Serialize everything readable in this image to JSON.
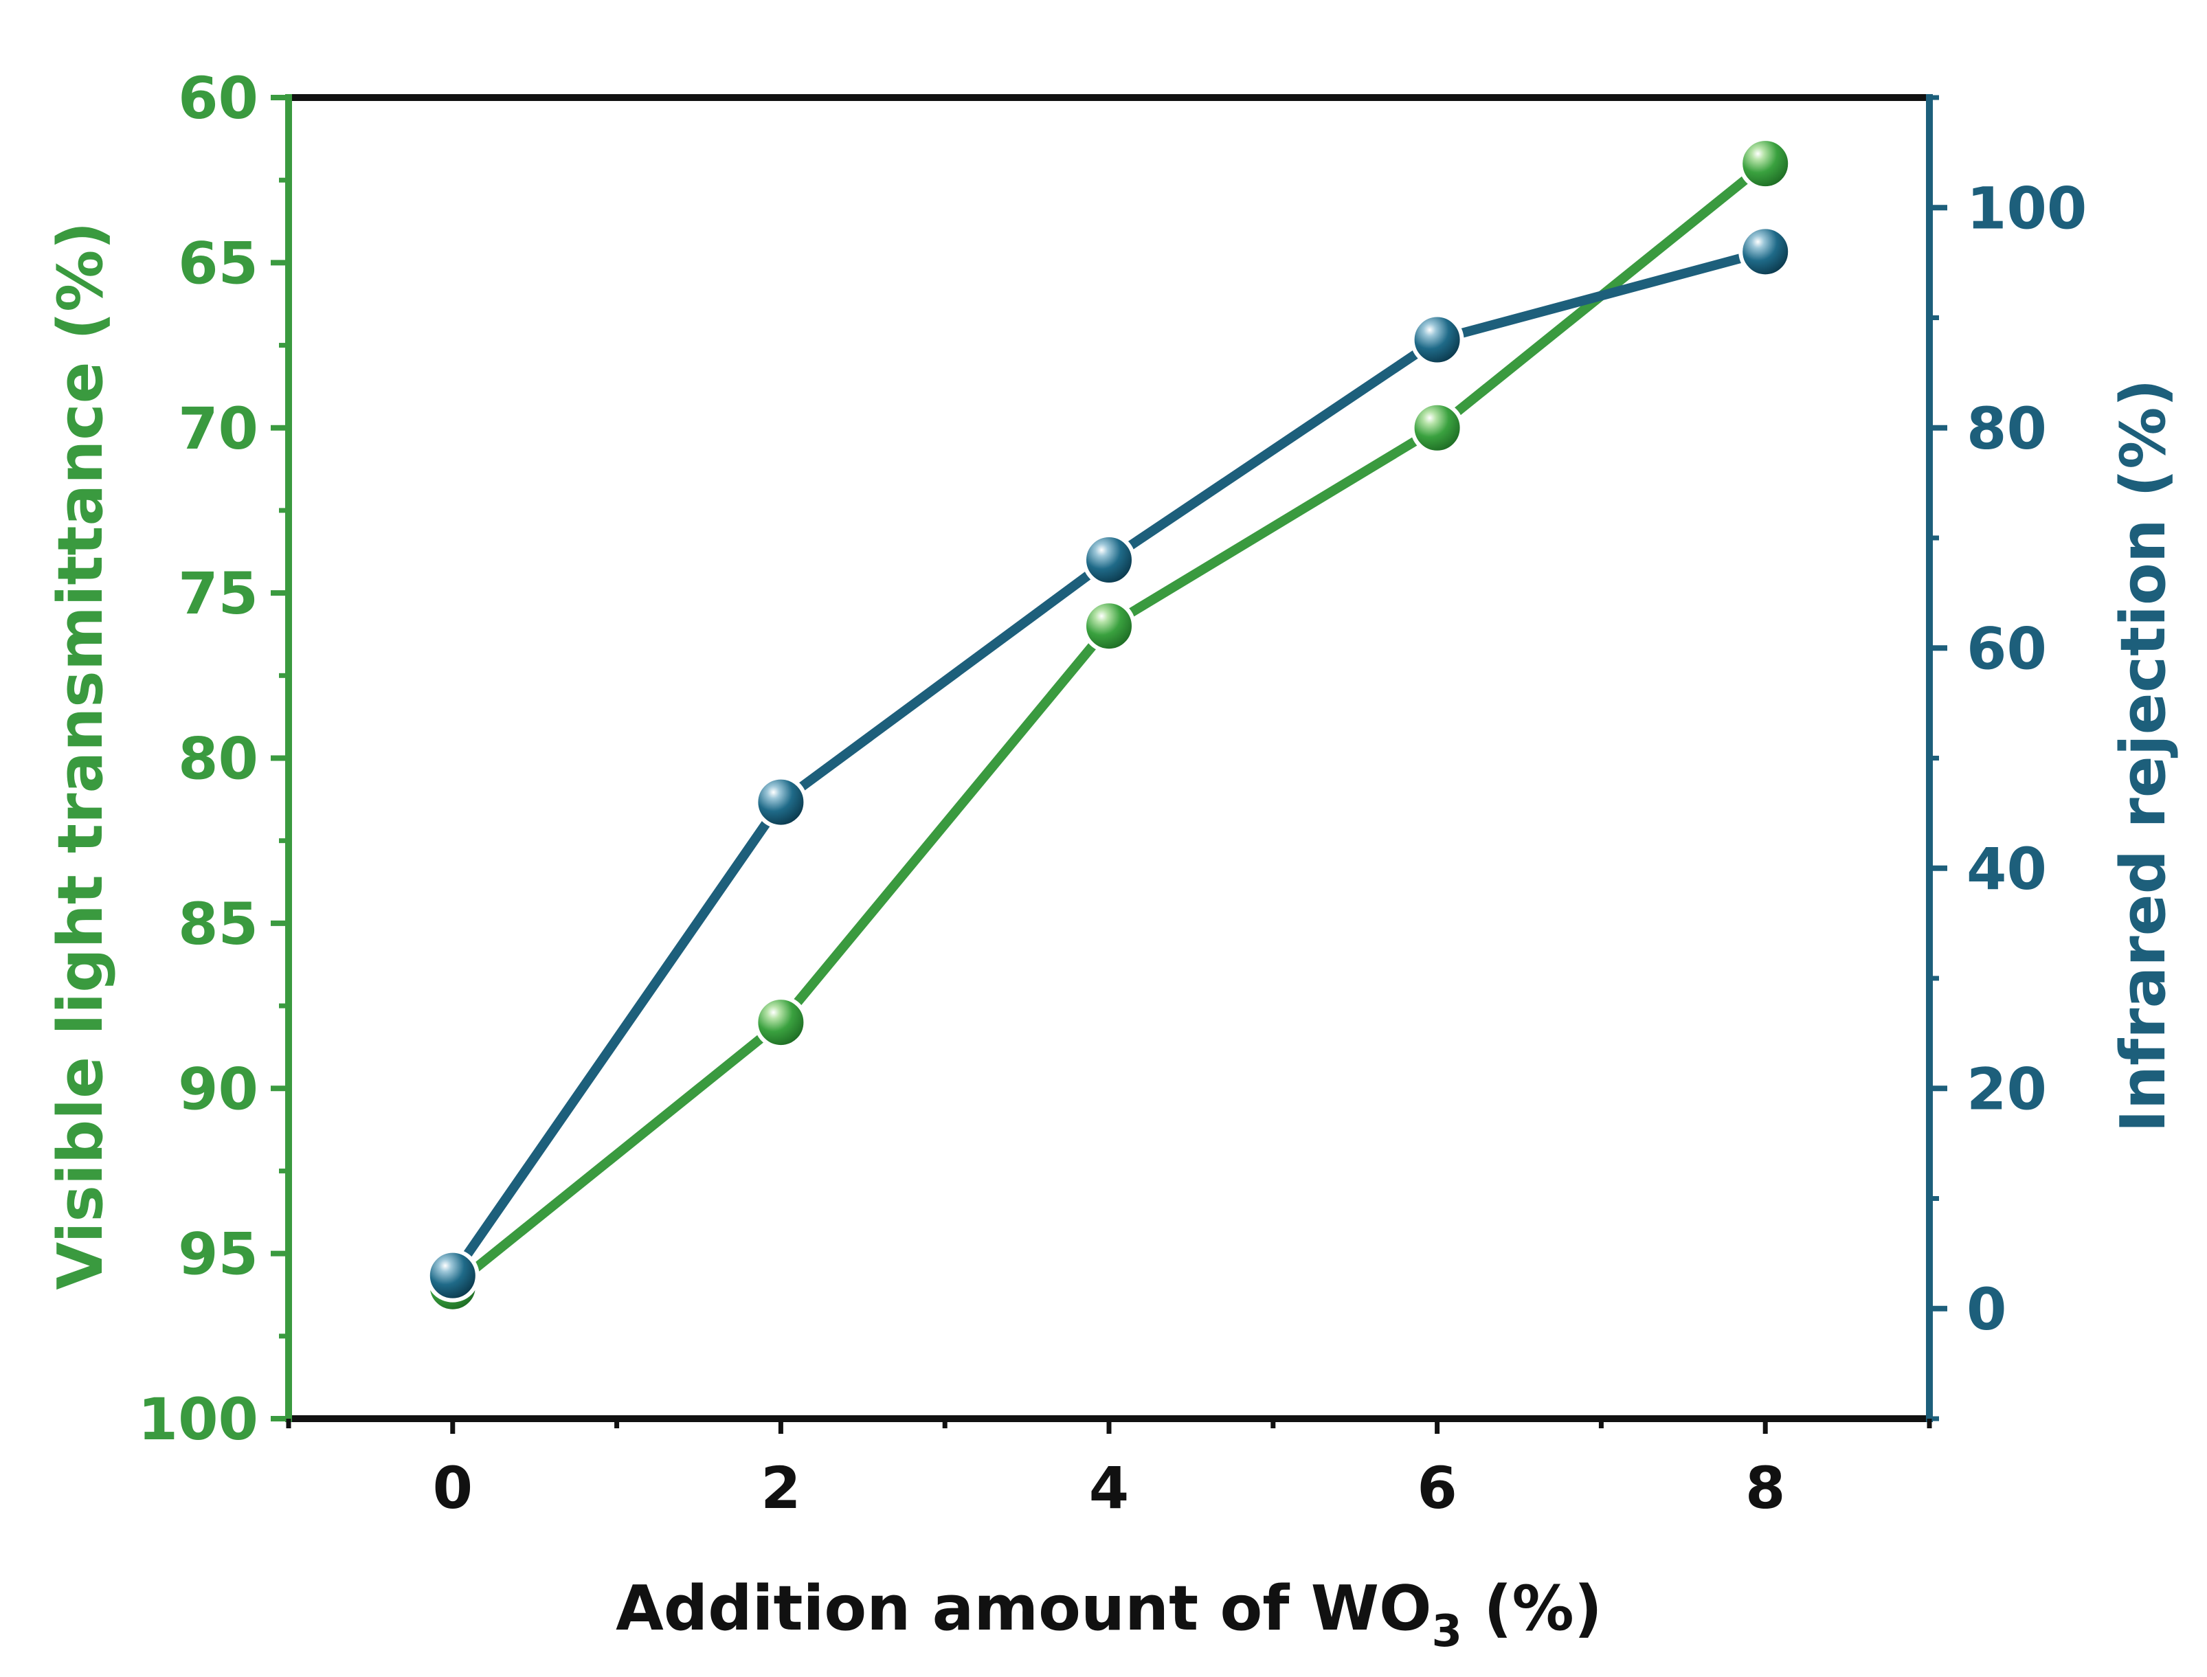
{
  "chart_data": {
    "type": "line",
    "title": "",
    "x": [
      0,
      2,
      4,
      6,
      8
    ],
    "xlim": [
      -1,
      9
    ],
    "xticks": [
      0,
      2,
      4,
      6,
      8
    ],
    "xlabel": {
      "main": "Addition amount of WO",
      "subscript": "3",
      "suffix": " (%)"
    },
    "y_left": {
      "label": "Visible light transmittance (%)",
      "range": [
        60,
        100
      ],
      "inverted": true,
      "ticks": [
        60,
        65,
        70,
        75,
        80,
        85,
        90,
        95,
        100
      ],
      "color": "#3a9a3f"
    },
    "y_right": {
      "label": "Infrared rejection (%)",
      "range": [
        -10,
        110
      ],
      "ticks": [
        0,
        20,
        40,
        60,
        80,
        100
      ],
      "color": "#1d5f7b"
    },
    "series": [
      {
        "name": "Visible light transmittance",
        "axis": "left",
        "color": "#3a9a3f",
        "values": [
          96,
          88,
          76,
          70,
          62
        ]
      },
      {
        "name": "Infrared rejection",
        "axis": "right",
        "color": "#1d5f7b",
        "values": [
          3,
          46,
          68,
          88,
          96
        ]
      }
    ],
    "grid": false,
    "legend": "none"
  }
}
